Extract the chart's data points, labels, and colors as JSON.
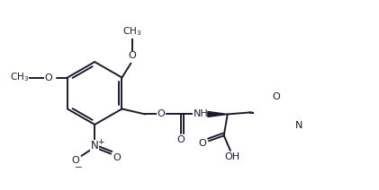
{
  "bg_color": "#ffffff",
  "line_color": "#1a1a2e",
  "line_width": 1.4,
  "font_size": 8.0,
  "figsize": [
    4.21,
    2.12
  ],
  "dpi": 100,
  "xlim": [
    -0.3,
    9.2
  ],
  "ylim": [
    -0.5,
    4.8
  ]
}
